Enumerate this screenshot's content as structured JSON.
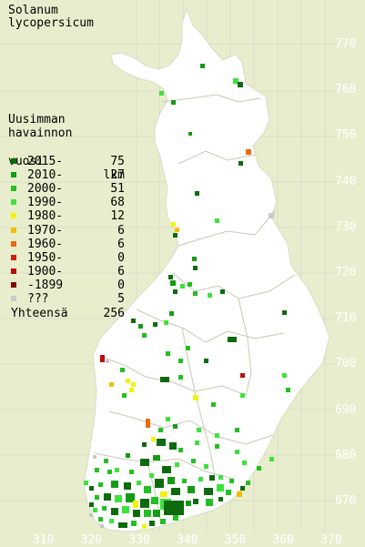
{
  "title": {
    "line1": "Solanum",
    "line2": "lycopersicum"
  },
  "legend": {
    "heading1": "Uusimman",
    "heading2": "havainnon",
    "heading3_left": "vuosi",
    "heading3_right": "lkm",
    "rows": [
      {
        "label": "2015-",
        "count": "75",
        "color": "#0d6b0d"
      },
      {
        "label": "2010-",
        "count": "27",
        "color": "#169a16"
      },
      {
        "label": "2000-",
        "count": "51",
        "color": "#22c022"
      },
      {
        "label": "1990-",
        "count": "68",
        "color": "#3be33b"
      },
      {
        "label": "1980-",
        "count": "12",
        "color": "#f2f20a"
      },
      {
        "label": "1970-",
        "count": "6",
        "color": "#f2be0a"
      },
      {
        "label": "1960-",
        "count": "6",
        "color": "#ec6a0e"
      },
      {
        "label": "1950-",
        "count": "0",
        "color": "#d2200e"
      },
      {
        "label": "1900-",
        "count": "6",
        "color": "#b80e0e"
      },
      {
        "label": "-1899",
        "count": "0",
        "color": "#7e0808"
      },
      {
        "label": "???",
        "count": "5",
        "color": "#c8c8c8"
      }
    ],
    "total_label": "Yhteensä",
    "total_count": "256"
  },
  "axes": {
    "y_ticks": [
      "770",
      "760",
      "750",
      "740",
      "730",
      "720",
      "710",
      "700",
      "690",
      "680",
      "670"
    ],
    "x_ticks": [
      "310",
      "320",
      "330",
      "340",
      "350",
      "360",
      "370"
    ]
  },
  "colors": {
    "background": "#e8eecd",
    "land": "#ffffff",
    "grid": "#d8d8c8",
    "borders": "#c8c8b4"
  }
}
